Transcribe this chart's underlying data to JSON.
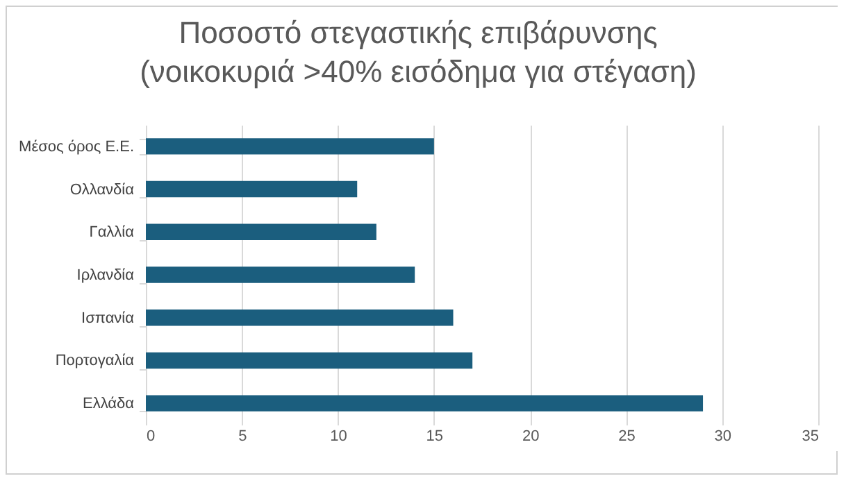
{
  "chart_data": {
    "type": "bar",
    "orientation": "horizontal",
    "title": "Ποσοστό στεγαστικής επιβάρυνσης\n(νοικοκυριά >40% εισόδημα για στέγαση)",
    "categories": [
      "Μέσος όρος Ε.Ε.",
      "Ολλανδία",
      "Γαλλία",
      "Ιρλανδία",
      "Ισπανία",
      "Πορτογαλία",
      "Ελλάδα"
    ],
    "values": [
      15,
      11,
      12,
      14,
      16,
      17,
      29
    ],
    "color": "#1b5e7e",
    "xlim": [
      0,
      35
    ],
    "xticks": [
      0,
      5,
      10,
      15,
      20,
      25,
      30,
      35
    ],
    "grid": "x"
  }
}
